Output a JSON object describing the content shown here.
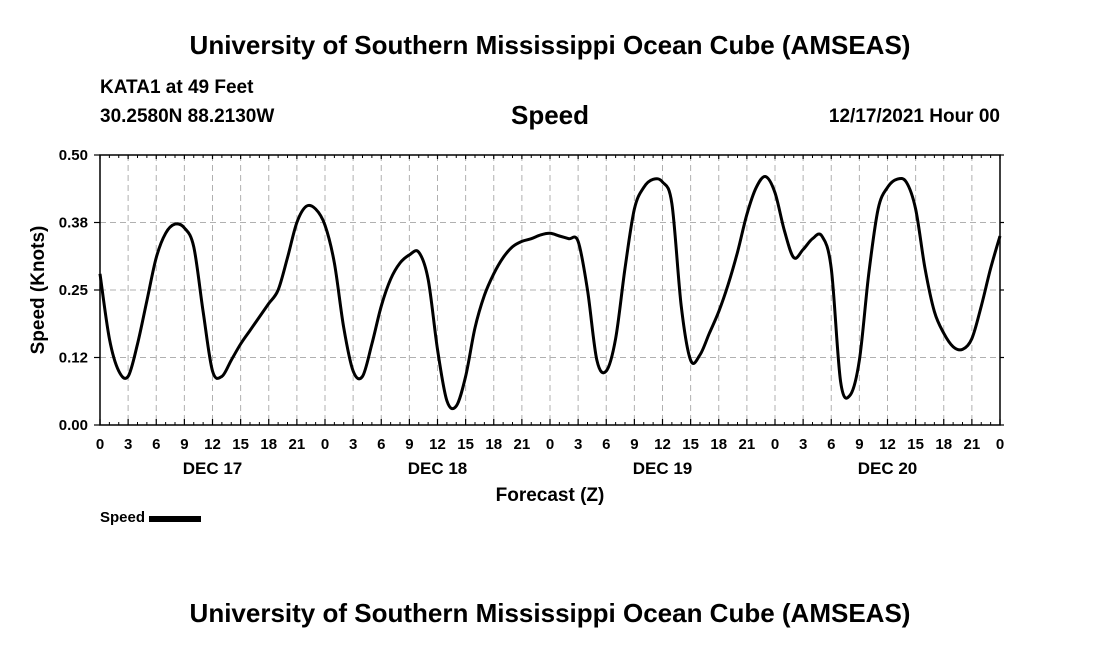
{
  "header": {
    "title_top": "University of Southern Mississippi Ocean Cube (AMSEAS)",
    "title_bottom": "University of Southern Mississippi Ocean Cube (AMSEAS)",
    "station": "KATA1 at 49 Feet",
    "coordinates": "30.2580N  88.2130W",
    "variable": "Speed",
    "datetime": "12/17/2021 Hour 00"
  },
  "legend": {
    "label": "Speed",
    "color": "#000000"
  },
  "chart_data": {
    "type": "line",
    "title": "Speed",
    "xlabel": "Forecast (Z)",
    "ylabel": "Speed (Knots)",
    "xlim": [
      0,
      96
    ],
    "ylim": [
      0,
      0.5
    ],
    "grid": true,
    "y_ticks": [
      0,
      0.125,
      0.25,
      0.375,
      0.5
    ],
    "y_tick_labels": [
      "0.00",
      "0.12",
      "0.25",
      "0.38",
      "0.50"
    ],
    "x_ticks": [
      0,
      3,
      6,
      9,
      12,
      15,
      18,
      21,
      24,
      27,
      30,
      33,
      36,
      39,
      42,
      45,
      48,
      51,
      54,
      57,
      60,
      63,
      66,
      69,
      72,
      75,
      78,
      81,
      84,
      87,
      90,
      93,
      96
    ],
    "x_tick_labels": [
      "0",
      "3",
      "6",
      "9",
      "12",
      "15",
      "18",
      "21",
      "0",
      "3",
      "6",
      "9",
      "12",
      "15",
      "18",
      "21",
      "0",
      "3",
      "6",
      "9",
      "12",
      "15",
      "18",
      "21",
      "0",
      "3",
      "6",
      "9",
      "12",
      "15",
      "18",
      "21",
      "0"
    ],
    "day_labels": [
      {
        "label": "DEC 17",
        "x": 12
      },
      {
        "label": "DEC 18",
        "x": 36
      },
      {
        "label": "DEC 19",
        "x": 60
      },
      {
        "label": "DEC 20",
        "x": 84
      }
    ],
    "series": [
      {
        "name": "Speed",
        "color": "#000000",
        "x": [
          0,
          1,
          2,
          3,
          4,
          5,
          6,
          7,
          8,
          9,
          10,
          11,
          12,
          13,
          14,
          15,
          16,
          17,
          18,
          19,
          20,
          21,
          22,
          23,
          24,
          25,
          26,
          27,
          28,
          29,
          30,
          31,
          32,
          33,
          34,
          35,
          36,
          37,
          38,
          39,
          40,
          41,
          42,
          43,
          44,
          45,
          46,
          47,
          48,
          49,
          50,
          51,
          52,
          53,
          54,
          55,
          56,
          57,
          58,
          59,
          60,
          61,
          62,
          63,
          64,
          65,
          66,
          67,
          68,
          69,
          70,
          71,
          72,
          73,
          74,
          75,
          76,
          77,
          78,
          79,
          80,
          81,
          82,
          83,
          84,
          85,
          86,
          87,
          88,
          89,
          90,
          91,
          92,
          93,
          94,
          95,
          96
        ],
        "values": [
          0.28,
          0.16,
          0.1,
          0.09,
          0.15,
          0.23,
          0.31,
          0.355,
          0.372,
          0.365,
          0.33,
          0.21,
          0.1,
          0.09,
          0.12,
          0.15,
          0.175,
          0.2,
          0.225,
          0.25,
          0.31,
          0.375,
          0.405,
          0.4,
          0.37,
          0.3,
          0.18,
          0.1,
          0.09,
          0.15,
          0.22,
          0.27,
          0.3,
          0.315,
          0.32,
          0.27,
          0.14,
          0.045,
          0.035,
          0.09,
          0.18,
          0.24,
          0.28,
          0.31,
          0.33,
          0.34,
          0.345,
          0.352,
          0.355,
          0.35,
          0.345,
          0.34,
          0.25,
          0.12,
          0.1,
          0.16,
          0.29,
          0.4,
          0.44,
          0.455,
          0.45,
          0.41,
          0.22,
          0.12,
          0.13,
          0.17,
          0.21,
          0.26,
          0.32,
          0.39,
          0.44,
          0.46,
          0.43,
          0.36,
          0.31,
          0.325,
          0.345,
          0.35,
          0.29,
          0.08,
          0.055,
          0.12,
          0.28,
          0.4,
          0.44,
          0.455,
          0.45,
          0.4,
          0.29,
          0.21,
          0.17,
          0.145,
          0.14,
          0.16,
          0.22,
          0.29,
          0.35
        ]
      }
    ]
  }
}
